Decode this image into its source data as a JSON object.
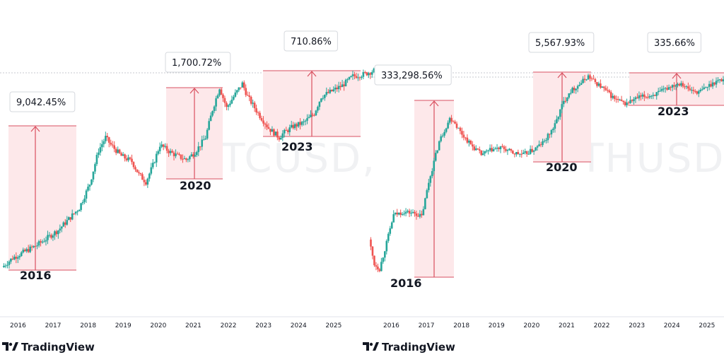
{
  "brand": "TradingView",
  "chart_data": [
    {
      "type": "candlestick",
      "watermark": "BTCUSD,",
      "x_ticks": [
        "2016",
        "2017",
        "2018",
        "2019",
        "2020",
        "2021",
        "2022",
        "2023",
        "2024",
        "2025"
      ],
      "cycles": [
        {
          "year_label": "2016",
          "pct_label": "9,042.45%",
          "from": 2015.0,
          "to": 2017.75,
          "gain_pct": 9042.45
        },
        {
          "year_label": "2020",
          "pct_label": "1,700.72%",
          "from": 2020.25,
          "to": 2021.85,
          "gain_pct": 1700.72
        },
        {
          "year_label": "2023",
          "pct_label": "710.86%",
          "from": 2023.0,
          "to": 2025.75,
          "gain_pct": 710.86
        }
      ],
      "price_path": [
        [
          2015.0,
          0.0
        ],
        [
          2015.3,
          0.05
        ],
        [
          2015.6,
          0.08
        ],
        [
          2016.0,
          0.12
        ],
        [
          2016.3,
          0.16
        ],
        [
          2016.6,
          0.2
        ],
        [
          2016.9,
          0.26
        ],
        [
          2017.2,
          0.32
        ],
        [
          2017.5,
          0.45
        ],
        [
          2017.75,
          0.63
        ],
        [
          2017.95,
          0.7
        ],
        [
          2018.1,
          0.66
        ],
        [
          2018.4,
          0.6
        ],
        [
          2018.7,
          0.57
        ],
        [
          2018.9,
          0.5
        ],
        [
          2019.1,
          0.46
        ],
        [
          2019.3,
          0.55
        ],
        [
          2019.5,
          0.66
        ],
        [
          2019.8,
          0.62
        ],
        [
          2020.0,
          0.6
        ],
        [
          2020.25,
          0.58
        ],
        [
          2020.5,
          0.62
        ],
        [
          2020.8,
          0.7
        ],
        [
          2021.0,
          0.85
        ],
        [
          2021.2,
          0.97
        ],
        [
          2021.4,
          0.86
        ],
        [
          2021.6,
          0.92
        ],
        [
          2021.85,
          0.99
        ],
        [
          2022.0,
          0.92
        ],
        [
          2022.3,
          0.83
        ],
        [
          2022.6,
          0.75
        ],
        [
          2022.9,
          0.7
        ],
        [
          2023.0,
          0.72
        ],
        [
          2023.3,
          0.76
        ],
        [
          2023.6,
          0.78
        ],
        [
          2023.9,
          0.83
        ],
        [
          2024.1,
          0.92
        ],
        [
          2024.4,
          0.95
        ],
        [
          2024.7,
          0.98
        ],
        [
          2025.0,
          1.03
        ],
        [
          2025.3,
          1.04
        ],
        [
          2025.6,
          1.06
        ],
        [
          2025.75,
          1.05
        ]
      ]
    },
    {
      "type": "candlestick",
      "watermark": "ETHUSD,",
      "x_ticks": [
        "2016",
        "2017",
        "2018",
        "2019",
        "2020",
        "2021",
        "2022",
        "2023",
        "2024",
        "2025"
      ],
      "cycles": [
        {
          "year_label": "2016",
          "pct_label": "333,298.56%",
          "from": 2015.85,
          "to": 2018.0,
          "gain_pct": 333298.56
        },
        {
          "year_label": "2020",
          "pct_label": "5,567.93%",
          "from": 2020.35,
          "to": 2022.0,
          "gain_pct": 5567.93
        },
        {
          "year_label": "2023",
          "pct_label": "335.66%",
          "from": 2023.0,
          "to": 2025.75,
          "gain_pct": 335.66
        }
      ],
      "price_path": [
        [
          2015.6,
          0.2
        ],
        [
          2015.75,
          0.05
        ],
        [
          2015.9,
          0.02
        ],
        [
          2016.1,
          0.18
        ],
        [
          2016.3,
          0.35
        ],
        [
          2016.6,
          0.37
        ],
        [
          2016.9,
          0.36
        ],
        [
          2017.1,
          0.34
        ],
        [
          2017.3,
          0.55
        ],
        [
          2017.6,
          0.8
        ],
        [
          2017.9,
          0.94
        ],
        [
          2018.0,
          0.93
        ],
        [
          2018.2,
          0.86
        ],
        [
          2018.5,
          0.78
        ],
        [
          2018.8,
          0.72
        ],
        [
          2019.1,
          0.75
        ],
        [
          2019.4,
          0.76
        ],
        [
          2019.7,
          0.73
        ],
        [
          2020.0,
          0.72
        ],
        [
          2020.3,
          0.75
        ],
        [
          2020.6,
          0.8
        ],
        [
          2020.9,
          0.9
        ],
        [
          2021.1,
          1.02
        ],
        [
          2021.3,
          1.1
        ],
        [
          2021.6,
          1.15
        ],
        [
          2021.85,
          1.2
        ],
        [
          2022.0,
          1.17
        ],
        [
          2022.3,
          1.12
        ],
        [
          2022.6,
          1.06
        ],
        [
          2022.9,
          1.03
        ],
        [
          2023.0,
          1.04
        ],
        [
          2023.3,
          1.07
        ],
        [
          2023.6,
          1.08
        ],
        [
          2023.9,
          1.1
        ],
        [
          2024.2,
          1.14
        ],
        [
          2024.5,
          1.16
        ],
        [
          2024.7,
          1.12
        ],
        [
          2025.0,
          1.1
        ],
        [
          2025.2,
          1.13
        ],
        [
          2025.5,
          1.17
        ],
        [
          2025.75,
          1.18
        ]
      ]
    }
  ]
}
